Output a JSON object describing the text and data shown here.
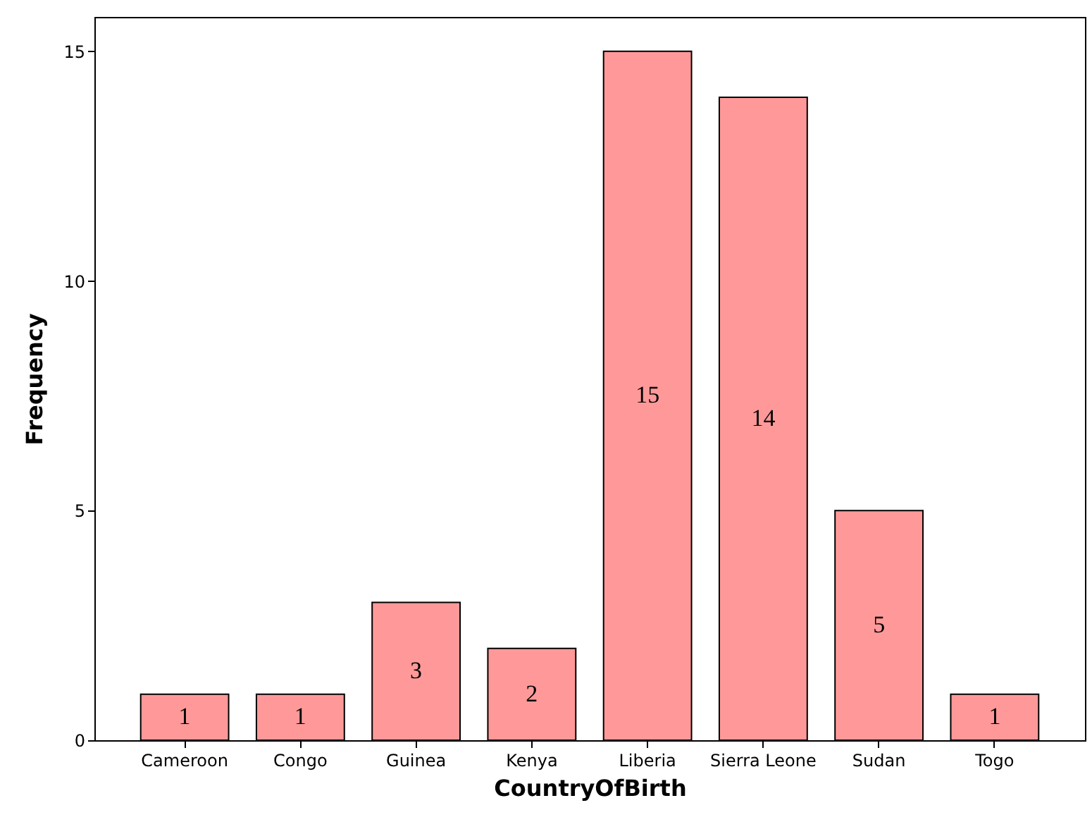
{
  "chart_data": {
    "type": "bar",
    "xlabel": "CountryOfBirth",
    "ylabel": "Frequency",
    "categories": [
      "Cameroon",
      "Congo",
      "Guinea",
      "Kenya",
      "Liberia",
      "Sierra Leone",
      "Sudan",
      "Togo"
    ],
    "values": [
      1,
      1,
      3,
      2,
      15,
      14,
      5,
      1
    ],
    "color": "#ff9999",
    "ylim": [
      0,
      15.75
    ],
    "yticks": [
      0,
      5,
      10,
      15
    ],
    "grid": false,
    "data_labels": true
  }
}
